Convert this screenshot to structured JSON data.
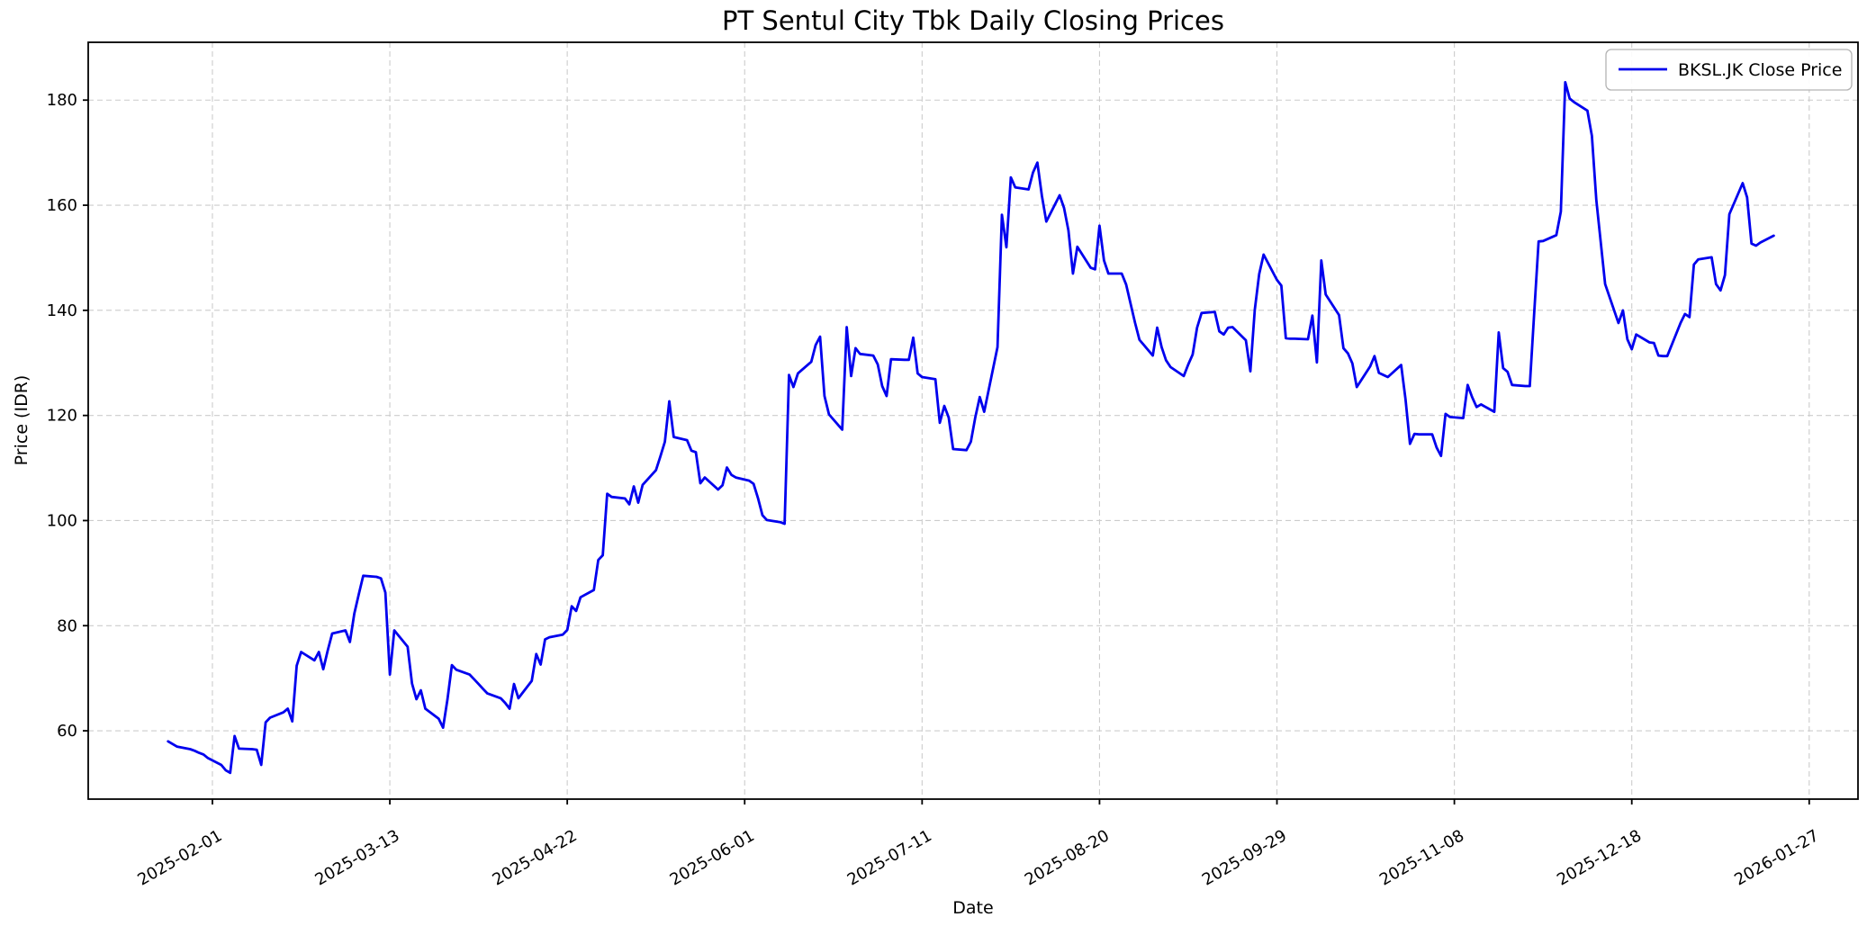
{
  "chart_data": {
    "type": "line",
    "title": "PT Sentul City Tbk Daily Closing Prices",
    "xlabel": "Date",
    "ylabel": "Price (IDR)",
    "legend": {
      "position": "upper-right",
      "entries": [
        "BKSL.JK Close Price"
      ]
    },
    "grid": true,
    "colors": {
      "line": "#0000ee",
      "grid": "#cccccc",
      "spine": "#000000",
      "background": "#ffffff",
      "legend_border": "#b3b3b3"
    },
    "x_ticks": [
      "2025-02-01",
      "2025-03-13",
      "2025-04-22",
      "2025-06-01",
      "2025-07-11",
      "2025-08-20",
      "2025-09-29",
      "2025-11-08",
      "2025-12-18",
      "2026-01-27"
    ],
    "y_ticks": [
      60,
      80,
      100,
      120,
      140,
      160,
      180
    ],
    "ylim": [
      47,
      191
    ],
    "xlim": [
      "2025-01-04",
      "2026-02-07"
    ],
    "series": [
      {
        "name": "BKSL.JK Close Price",
        "color": "#0000ee",
        "start_date": "2025-01-22",
        "frequency": "business-daily",
        "values": [
          58.0,
          57.5,
          57.0,
          56.5,
          56.2,
          55.8,
          55.5,
          54.8,
          53.5,
          52.5,
          52.0,
          59.0,
          56.6,
          56.5,
          56.4,
          53.5,
          61.6,
          62.5,
          63.5,
          64.2,
          61.8,
          72.4,
          75.0,
          73.4,
          75.0,
          71.7,
          75.3,
          78.5,
          79.1,
          76.9,
          82.3,
          86.0,
          89.5,
          89.3,
          89.0,
          86.3,
          70.7,
          79.1,
          76.0,
          69.0,
          66.0,
          67.7,
          64.2,
          62.3,
          60.6,
          66.0,
          72.5,
          71.6,
          70.7,
          69.8,
          68.9,
          68.0,
          67.1,
          66.2,
          65.3,
          64.2,
          68.9,
          66.2,
          69.5,
          74.6,
          72.6,
          77.4,
          77.8,
          78.3,
          79.2,
          83.7,
          82.8,
          85.4,
          86.8,
          92.5,
          93.4,
          105.1,
          104.5,
          104.2,
          103.1,
          106.5,
          103.4,
          106.8,
          109.6,
          112.2,
          115.0,
          122.7,
          115.9,
          115.3,
          113.3,
          113.0,
          107.1,
          108.2,
          105.9,
          106.7,
          110.1,
          108.7,
          108.2,
          107.6,
          107.0,
          104.3,
          101.0,
          100.1,
          99.7,
          99.4,
          127.7,
          125.4,
          128.0,
          130.2,
          133.4,
          135.0,
          123.7,
          120.2,
          117.3,
          136.8,
          127.5,
          132.8,
          131.7,
          131.4,
          129.7,
          125.6,
          123.7,
          130.7,
          130.6,
          130.6,
          134.8,
          128.0,
          127.3,
          126.9,
          118.6,
          121.8,
          119.6,
          113.6,
          113.4,
          115.0,
          119.7,
          123.5,
          120.7,
          133.0,
          158.2,
          152.0,
          165.3,
          163.4,
          163.0,
          166.2,
          168.1,
          161.8,
          156.9,
          161.9,
          159.5,
          155.2,
          147.0,
          152.1,
          148.1,
          147.8,
          156.1,
          149.5,
          147.0,
          147.0,
          144.9,
          141.3,
          137.7,
          134.4,
          131.4,
          136.7,
          133.0,
          130.5,
          129.2,
          127.5,
          129.7,
          131.6,
          136.7,
          139.5,
          139.7,
          136.0,
          135.4,
          136.7,
          136.8,
          134.3,
          128.4,
          140.1,
          146.9,
          150.6,
          145.8,
          144.7,
          134.7,
          134.6,
          134.6,
          134.5,
          139.0,
          130.1,
          149.5,
          143.0,
          139.1,
          132.8,
          131.8,
          129.9,
          125.4,
          129.3,
          131.3,
          128.1,
          127.7,
          127.3,
          129.6,
          123.0,
          114.6,
          116.5,
          116.4,
          116.4,
          113.9,
          112.3,
          120.3,
          119.7,
          119.5,
          125.8,
          123.5,
          121.6,
          122.1,
          120.7,
          135.8,
          129.0,
          128.3,
          125.8,
          125.6,
          125.6,
          139.5,
          153.1,
          153.2,
          154.3,
          158.8,
          183.4,
          180.3,
          179.6,
          178.0,
          173.2,
          161.0,
          153.0,
          145.0,
          137.6,
          140.0,
          134.5,
          132.6,
          135.4,
          133.9,
          133.8,
          131.4,
          131.3,
          131.3,
          137.6,
          139.3,
          138.7,
          148.7,
          149.7,
          150.1,
          145.0,
          143.8,
          146.7,
          158.3,
          164.2,
          161.5,
          152.7,
          152.3,
          152.9,
          154.2
        ]
      }
    ]
  }
}
